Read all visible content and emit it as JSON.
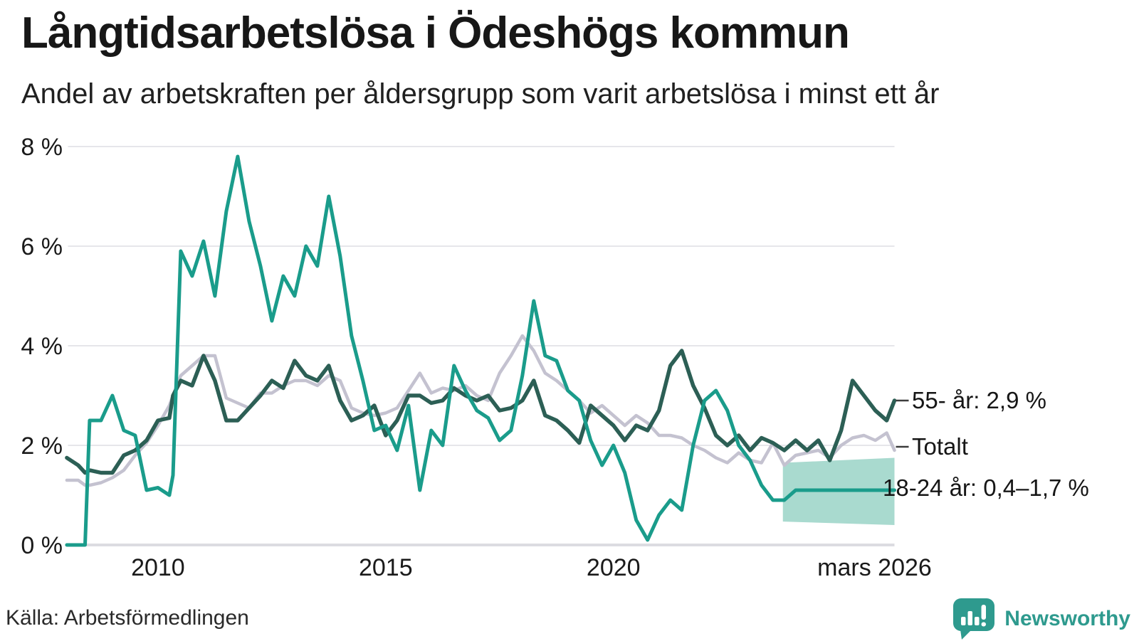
{
  "header": {
    "title": "Långtidsarbetslösa i Ödeshögs kommun",
    "subtitle": "Andel av arbetskraften per åldersgrupp som varit arbetslösa i minst ett år"
  },
  "footer": {
    "source": "Källa: Arbetsförmedlingen",
    "brand": "Newsworthy"
  },
  "colors": {
    "series_55": "#2c5f55",
    "series_total": "#c4c2d0",
    "series_1824": "#1a9c8b",
    "forecast_band": "#a9dacf",
    "gridline": "#e6e6ea",
    "zeroline": "#dcdce1",
    "text": "#1a1a1a",
    "brand_teal": "#2e9a8e"
  },
  "chart_data": {
    "type": "line",
    "title": "Långtidsarbetslösa i Ödeshögs kommun",
    "subtitle": "Andel av arbetskraften per åldersgrupp som varit arbetslösa i minst ett år",
    "xlabel": "",
    "ylabel": "",
    "x_unit": "decimal_year",
    "y_unit": "percent",
    "xlim": [
      2008.04,
      2026.17
    ],
    "ylim": [
      0,
      8
    ],
    "grid": "horizontal",
    "legend_position": "right-end-labels",
    "y_ticks": [
      {
        "value": 0,
        "label": "0 %"
      },
      {
        "value": 2,
        "label": "2 %"
      },
      {
        "value": 4,
        "label": "4 %"
      },
      {
        "value": 6,
        "label": "6 %"
      },
      {
        "value": 8,
        "label": "8 %"
      }
    ],
    "x_ticks": [
      {
        "value": 2010,
        "label": "2010"
      },
      {
        "value": 2015,
        "label": "2015"
      },
      {
        "value": 2020,
        "label": "2020"
      }
    ],
    "x_end_tick_label": "mars 2026",
    "x": [
      2008.0,
      2008.25,
      2008.4,
      2008.5,
      2008.75,
      2009.0,
      2009.25,
      2009.5,
      2009.75,
      2010.0,
      2010.25,
      2010.33,
      2010.5,
      2010.75,
      2011.0,
      2011.25,
      2011.5,
      2011.75,
      2012.0,
      2012.25,
      2012.5,
      2012.75,
      2013.0,
      2013.25,
      2013.5,
      2013.75,
      2014.0,
      2014.25,
      2014.5,
      2014.75,
      2015.0,
      2015.25,
      2015.5,
      2015.75,
      2016.0,
      2016.25,
      2016.5,
      2016.75,
      2017.0,
      2017.25,
      2017.5,
      2017.75,
      2018.0,
      2018.25,
      2018.5,
      2018.75,
      2019.0,
      2019.25,
      2019.5,
      2019.75,
      2020.0,
      2020.25,
      2020.5,
      2020.75,
      2021.0,
      2021.25,
      2021.5,
      2021.75,
      2022.0,
      2022.25,
      2022.5,
      2022.75,
      2023.0,
      2023.25,
      2023.5,
      2023.75,
      2024.0,
      2024.25,
      2024.5,
      2024.75,
      2025.0,
      2025.25,
      2025.5,
      2025.75,
      2026.0,
      2026.17
    ],
    "series": [
      {
        "name": "55- år",
        "color": "#2c5f55",
        "line_width": 5.5,
        "end_label": "55- år: 2,9 %",
        "end_value": 2.9,
        "leader_dash": true,
        "values": [
          1.75,
          1.6,
          1.45,
          1.5,
          1.45,
          1.45,
          1.8,
          1.9,
          2.1,
          2.5,
          2.55,
          3.0,
          3.3,
          3.2,
          3.8,
          3.3,
          2.5,
          2.5,
          2.75,
          3.0,
          3.3,
          3.15,
          3.7,
          3.4,
          3.3,
          3.6,
          2.9,
          2.5,
          2.6,
          2.8,
          2.2,
          2.5,
          3.0,
          3.0,
          2.85,
          2.9,
          3.15,
          3.0,
          2.9,
          3.0,
          2.7,
          2.75,
          2.9,
          3.3,
          2.6,
          2.5,
          2.3,
          2.05,
          2.8,
          2.6,
          2.4,
          2.1,
          2.4,
          2.3,
          2.7,
          3.6,
          3.9,
          3.2,
          2.75,
          2.2,
          2.0,
          2.2,
          1.9,
          2.15,
          2.05,
          1.9,
          2.1,
          1.9,
          2.1,
          1.7,
          2.3,
          3.3,
          3.0,
          2.7,
          2.5,
          2.9
        ]
      },
      {
        "name": "Totalt",
        "color": "#c4c2d0",
        "line_width": 4.5,
        "end_label": "Totalt",
        "end_value": 1.9,
        "leader_dash": true,
        "values": [
          1.3,
          1.3,
          1.2,
          1.2,
          1.25,
          1.35,
          1.5,
          1.8,
          2.05,
          2.4,
          2.8,
          3.0,
          3.4,
          3.6,
          3.8,
          3.8,
          2.95,
          2.85,
          2.75,
          3.05,
          3.05,
          3.2,
          3.3,
          3.3,
          3.2,
          3.4,
          3.3,
          2.75,
          2.65,
          2.6,
          2.65,
          2.75,
          3.1,
          3.45,
          3.05,
          3.15,
          3.1,
          3.2,
          3.0,
          2.9,
          3.45,
          3.8,
          4.2,
          3.9,
          3.45,
          3.3,
          3.1,
          2.9,
          2.65,
          2.8,
          2.6,
          2.4,
          2.6,
          2.45,
          2.2,
          2.2,
          2.15,
          2.0,
          1.9,
          1.75,
          1.65,
          1.85,
          1.7,
          1.65,
          2.05,
          1.6,
          1.8,
          1.85,
          1.9,
          1.75,
          2.0,
          2.15,
          2.2,
          2.1,
          2.25,
          1.9
        ]
      },
      {
        "name": "18-24 år",
        "color": "#1a9c8b",
        "line_width": 5,
        "end_label": "18-24 år: 0,4–1,7 %",
        "end_value": 1.1,
        "forecast_range": [
          0.4,
          1.7
        ],
        "leader_dash": false,
        "values": [
          0,
          0,
          0,
          2.5,
          2.5,
          3.0,
          2.3,
          2.2,
          1.1,
          1.15,
          1.0,
          1.4,
          5.9,
          5.4,
          6.1,
          5.0,
          6.7,
          7.8,
          6.5,
          5.6,
          4.5,
          5.4,
          5.0,
          6.0,
          5.6,
          7.0,
          5.8,
          4.2,
          3.3,
          2.3,
          2.4,
          1.9,
          2.8,
          1.1,
          2.3,
          2.0,
          3.6,
          3.1,
          2.7,
          2.55,
          2.1,
          2.3,
          3.4,
          4.9,
          3.8,
          3.7,
          3.1,
          2.9,
          2.1,
          1.6,
          2.0,
          1.45,
          0.5,
          0.1,
          0.6,
          0.9,
          0.7,
          2.0,
          2.9,
          3.1,
          2.7,
          2.0,
          1.7,
          1.2,
          0.9,
          0.9,
          1.1,
          1.1,
          1.1,
          1.1,
          1.1,
          1.1,
          1.1,
          1.1,
          1.1,
          1.1
        ]
      }
    ],
    "forecast_band": {
      "series": "18-24 år",
      "x_start": 2023.72,
      "x_end": 2026.17,
      "high": [
        1.65,
        1.75
      ],
      "low": [
        0.47,
        0.4
      ],
      "color": "#a9dacf",
      "label_range_text": "0,4–1,7 %"
    }
  }
}
